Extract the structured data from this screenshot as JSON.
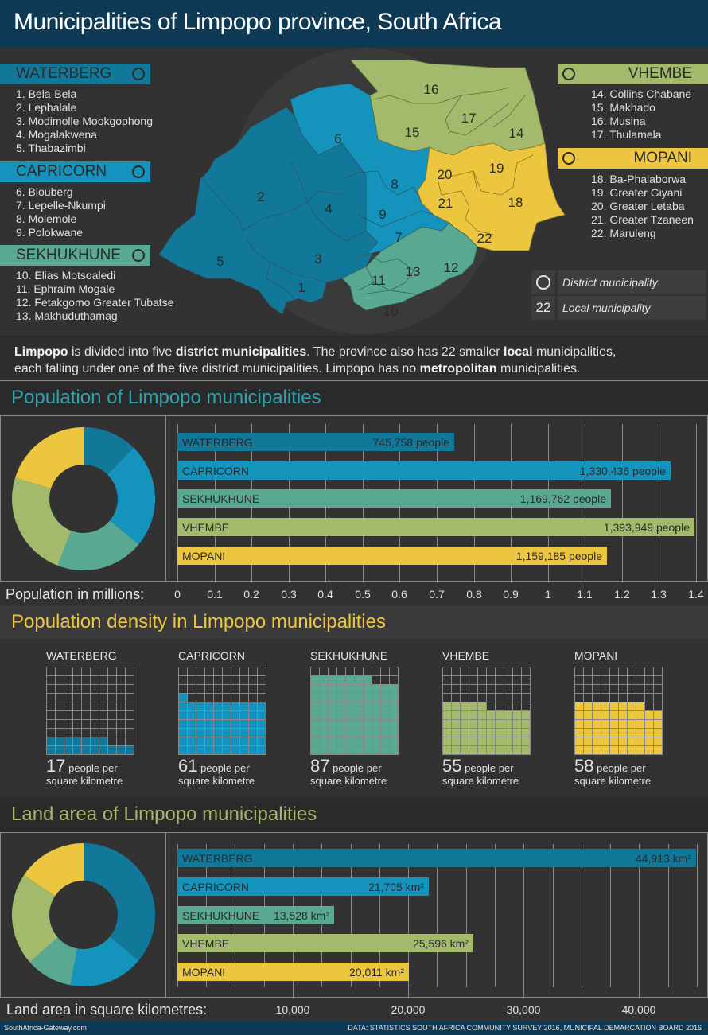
{
  "header": {
    "title": "Municipalities of Limpopo province, South Africa"
  },
  "colors": {
    "waterberg": "#12789a",
    "capricorn": "#1494bc",
    "sekhukhune": "#59a892",
    "vhembe": "#a3b96b",
    "mopani": "#ecc63f",
    "header_bg": "#0e3a55",
    "background": "#323232"
  },
  "districts": [
    {
      "name": "WATERBERG",
      "color": "#12789a",
      "municipalities": [
        "1. Bela-Bela",
        "2. Lephalale",
        "3. Modimolle Mookgophong",
        "4. Mogalakwena",
        "5. Thabazimbi"
      ]
    },
    {
      "name": "CAPRICORN",
      "color": "#1494bc",
      "municipalities": [
        "6. Blouberg",
        "7. Lepelle-Nkumpi",
        "8. Molemole",
        "9. Polokwane"
      ]
    },
    {
      "name": "SEKHUKHUNE",
      "color": "#59a892",
      "municipalities": [
        "10. Elias Motsoaledi",
        "11. Ephraim Mogale",
        "12. Fetakgomo Greater Tubatse",
        "13. Makhuduthamag"
      ]
    },
    {
      "name": "VHEMBE",
      "color": "#a3b96b",
      "municipalities": [
        "14. Collins Chabane",
        "15. Makhado",
        "16. Musina",
        "17. Thulamela"
      ]
    },
    {
      "name": "MOPANI",
      "color": "#ecc63f",
      "municipalities": [
        "18. Ba-Phalaborwa",
        "19. Greater Giyani",
        "20. Greater Letaba",
        "21. Greater Tzaneen",
        "22. Maruleng"
      ]
    }
  ],
  "map": {
    "labels": [
      "1",
      "2",
      "3",
      "4",
      "5",
      "6",
      "7",
      "8",
      "9",
      "10",
      "11",
      "12",
      "13",
      "14",
      "15",
      "16",
      "17",
      "18",
      "19",
      "20",
      "21",
      "22"
    ]
  },
  "legend": {
    "district_label": "District municipality",
    "local_key": "22",
    "local_label": "Local municipality"
  },
  "intro": {
    "p1_b1": "Limpopo",
    "p1_t1": " is divided into five ",
    "p1_b2": "district municipalities",
    "p1_t2": ". The province also has 22 smaller ",
    "p1_b3": "local",
    "p1_t3": " municipalities,",
    "p2_t1": "each falling under one of the five district municipalities. Limpopo has no ",
    "p2_b1": "metropolitan",
    "p2_t2": " municipalities."
  },
  "population": {
    "title": "Population of Limpopo municipalities",
    "axis_label": "Population in millions:",
    "ticks": [
      "0",
      "0.1",
      "0.2",
      "0.3",
      "0.4",
      "0.5",
      "0.6",
      "0.7",
      "0.8",
      "0.9",
      "1",
      "1.1",
      "1.2",
      "1.3",
      "1.4"
    ],
    "bars": [
      {
        "name": "WATERBERG",
        "value_label": "745,758 people"
      },
      {
        "name": "CAPRICORN",
        "value_label": "1,330,436 people"
      },
      {
        "name": "SEKHUKHUNE",
        "value_label": "1,169,762 people"
      },
      {
        "name": "VHEMBE",
        "value_label": "1,393,949 people"
      },
      {
        "name": "MOPANI",
        "value_label": "1,159,185 people"
      }
    ]
  },
  "density": {
    "title": "Population density in Limpopo municipalities",
    "unit_line1": "people per",
    "unit_line2": "square kilometre",
    "items": [
      {
        "name": "WATERBERG",
        "value": "17"
      },
      {
        "name": "CAPRICORN",
        "value": "61"
      },
      {
        "name": "SEKHUKHUNE",
        "value": "87"
      },
      {
        "name": "VHEMBE",
        "value": "55"
      },
      {
        "name": "MOPANI",
        "value": "58"
      }
    ]
  },
  "land": {
    "title": "Land area of Limpopo municipalities",
    "axis_label": "Land area in square kilometres:",
    "ticks": [
      "10,000",
      "20,000",
      "30,000",
      "40,000"
    ],
    "bars": [
      {
        "name": "WATERBERG",
        "value_label": "44,913 km²"
      },
      {
        "name": "CAPRICORN",
        "value_label": "21,705 km²"
      },
      {
        "name": "SEKHUKHUNE",
        "value_label": "13,528 km²"
      },
      {
        "name": "VHEMBE",
        "value_label": "25,596 km²"
      },
      {
        "name": "MOPANI",
        "value_label": "20,011 km²"
      }
    ]
  },
  "footer": {
    "site": "SouthAfrica-Gateway.com",
    "source": "DATA: STATISTICS SOUTH AFRICA COMMUNITY SURVEY 2016, MUNICIPAL DEMARCATION BOARD 2016"
  },
  "chart_data": [
    {
      "type": "bar",
      "title": "Population of Limpopo municipalities",
      "xlabel": "Population in millions",
      "categories": [
        "WATERBERG",
        "CAPRICORN",
        "SEKHUKHUNE",
        "VHEMBE",
        "MOPANI"
      ],
      "values": [
        745758,
        1330436,
        1169762,
        1393949,
        1159185
      ],
      "xlim": [
        0,
        1.4
      ],
      "orientation": "horizontal"
    },
    {
      "type": "pie",
      "title": "Population share (donut)",
      "categories": [
        "WATERBERG",
        "CAPRICORN",
        "SEKHUKHUNE",
        "VHEMBE",
        "MOPANI"
      ],
      "values": [
        745758,
        1330436,
        1169762,
        1393949,
        1159185
      ]
    },
    {
      "type": "waffle",
      "title": "Population density in Limpopo municipalities",
      "unit": "people per square kilometre",
      "categories": [
        "WATERBERG",
        "CAPRICORN",
        "SEKHUKHUNE",
        "VHEMBE",
        "MOPANI"
      ],
      "values": [
        17,
        61,
        87,
        55,
        58
      ]
    },
    {
      "type": "bar",
      "title": "Land area of Limpopo municipalities",
      "xlabel": "Land area in square kilometres",
      "categories": [
        "WATERBERG",
        "CAPRICORN",
        "SEKHUKHUNE",
        "VHEMBE",
        "MOPANI"
      ],
      "values": [
        44913,
        21705,
        13528,
        25596,
        20011
      ],
      "xlim": [
        0,
        45000
      ],
      "orientation": "horizontal"
    },
    {
      "type": "pie",
      "title": "Land area share (donut)",
      "categories": [
        "WATERBERG",
        "CAPRICORN",
        "SEKHUKHUNE",
        "VHEMBE",
        "MOPANI"
      ],
      "values": [
        44913,
        21705,
        13528,
        25596,
        20011
      ]
    }
  ]
}
